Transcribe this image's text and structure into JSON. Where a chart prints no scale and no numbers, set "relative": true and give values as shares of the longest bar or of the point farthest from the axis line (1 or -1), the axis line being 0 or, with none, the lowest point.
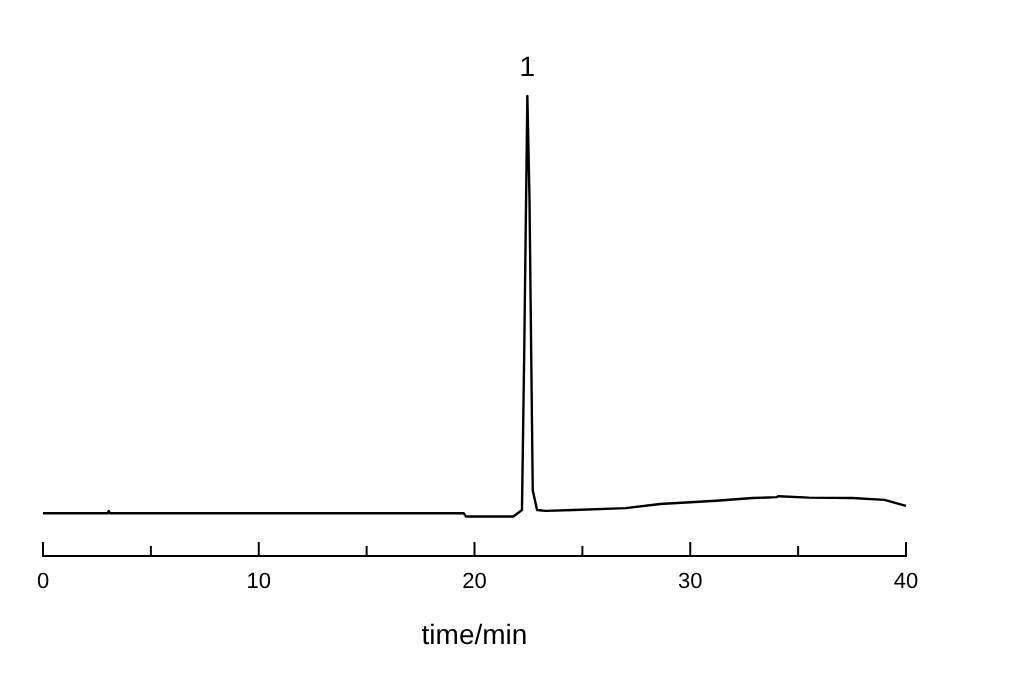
{
  "chart_data": {
    "type": "line",
    "relative": true,
    "xlabel": "time/min",
    "xlim": [
      0,
      40
    ],
    "xticks": [
      0,
      {
        "value": 5,
        "label": null
      },
      10,
      {
        "value": 15,
        "label": null
      },
      20,
      {
        "value": 25,
        "label": null
      },
      30,
      {
        "value": 35,
        "label": null
      },
      40
    ],
    "tick_labels": "x",
    "annotations": [
      {
        "text": "1",
        "x": 22.45,
        "y": 1
      }
    ],
    "series": [
      {
        "color": "#000000",
        "x": [
          0,
          3,
          3.05,
          3.1,
          19.5,
          19.6,
          21.8,
          22.2,
          22.3,
          22.45,
          22.55,
          22.6,
          22.7,
          22.9,
          23.3,
          24.6,
          27,
          28.6,
          31.2,
          32.9,
          34,
          34.1,
          35.5,
          37.5,
          39,
          40
        ],
        "values": [
          0.093,
          0.093,
          0.098,
          0.093,
          0.093,
          0.086,
          0.086,
          0.1,
          0.426,
          1,
          0.774,
          0.557,
          0.143,
          0.1,
          0.098,
          0.1,
          0.104,
          0.113,
          0.12,
          0.126,
          0.128,
          0.13,
          0.127,
          0.126,
          0.122,
          0.109
        ]
      }
    ]
  }
}
